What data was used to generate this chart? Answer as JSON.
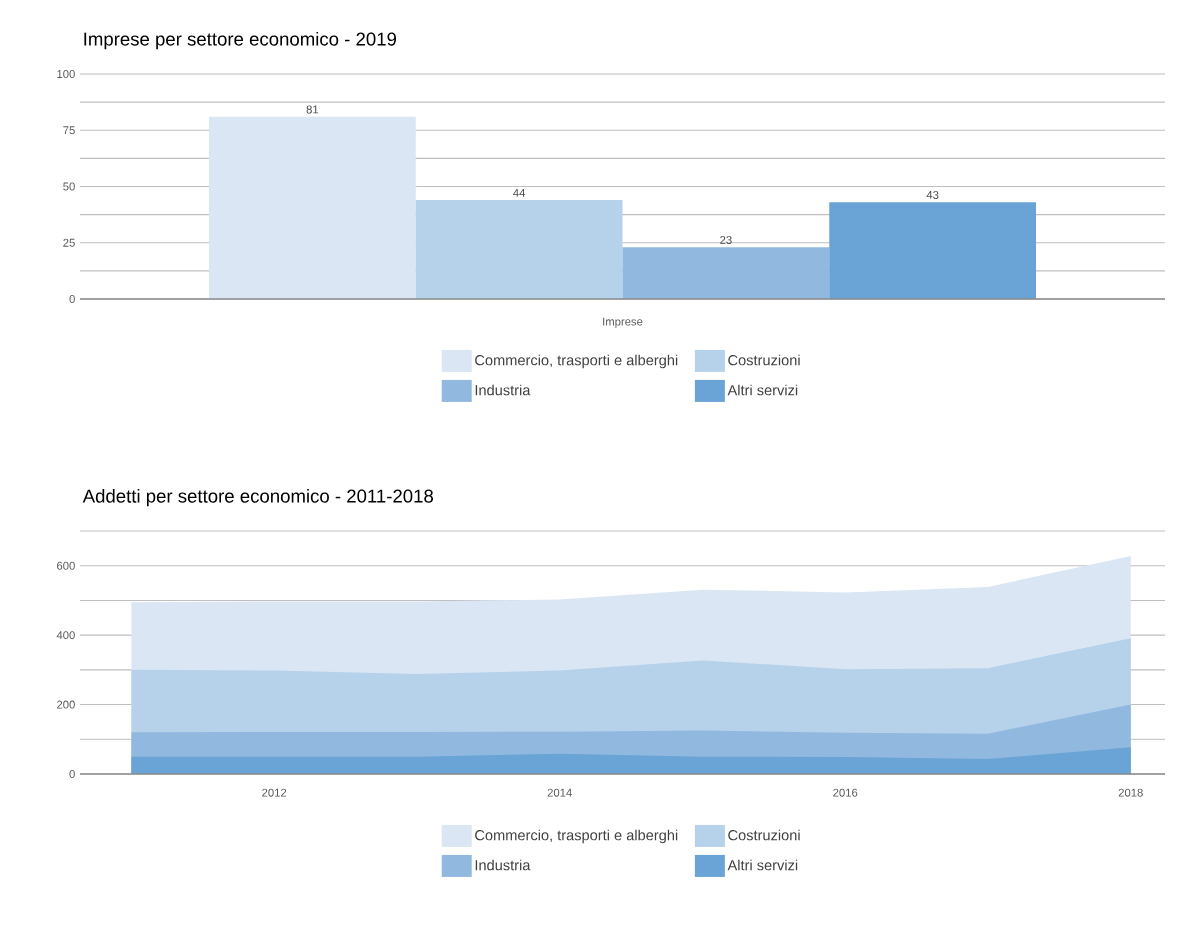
{
  "chart_data": [
    {
      "type": "bar",
      "title": "Imprese per settore economico - 2019",
      "categories": [
        "Imprese"
      ],
      "series": [
        {
          "name": "Commercio, trasporti e alberghi",
          "color": "#dae6f4",
          "values": [
            81
          ]
        },
        {
          "name": "Costruzioni",
          "color": "#b6d1ea",
          "values": [
            44
          ]
        },
        {
          "name": "Industria",
          "color": "#91b8df",
          "values": [
            23
          ]
        },
        {
          "name": "Altri servizi",
          "color": "#6aa3d5",
          "values": [
            43
          ]
        }
      ],
      "ylim": [
        0,
        100
      ],
      "yticks": [
        0,
        {
          "value": 12.5,
          "label": null
        },
        25,
        {
          "value": 37.5,
          "label": null
        },
        50,
        {
          "value": 62.5,
          "label": null
        },
        75,
        {
          "value": 87.5,
          "label": null
        },
        100
      ],
      "grid": "y",
      "legend": "bottom",
      "data_labels": true
    },
    {
      "type": "area",
      "title": "Addetti per settore economico - 2011-2018",
      "x": [
        2011,
        2012,
        2013,
        2014,
        2015,
        2016,
        2017,
        2018
      ],
      "series": [
        {
          "name": "Commercio, trasporti e alberghi",
          "color": "#dae6f4",
          "values": [
            495,
            497,
            497,
            503,
            531,
            523,
            539,
            628
          ]
        },
        {
          "name": "Costruzioni",
          "color": "#b6d1ea",
          "values": [
            300,
            298,
            288,
            298,
            327,
            302,
            305,
            391
          ]
        },
        {
          "name": "Industria",
          "color": "#91b8df",
          "values": [
            120,
            121,
            121,
            122,
            125,
            119,
            116,
            200
          ]
        },
        {
          "name": "Altri servizi",
          "color": "#6aa3d5",
          "values": [
            50,
            50,
            50,
            58,
            50,
            49,
            43,
            77
          ]
        }
      ],
      "xlim": [
        2010.64,
        2018.24
      ],
      "xticks": [
        2012,
        2014,
        2016,
        2018
      ],
      "ylim": [
        0,
        700
      ],
      "yticks": [
        0,
        {
          "value": 100,
          "label": null
        },
        200,
        {
          "value": 300,
          "label": null
        },
        400,
        {
          "value": 500,
          "label": null
        },
        600,
        {
          "value": 700,
          "label": null
        }
      ],
      "grid": "y",
      "legend": "bottom"
    }
  ]
}
